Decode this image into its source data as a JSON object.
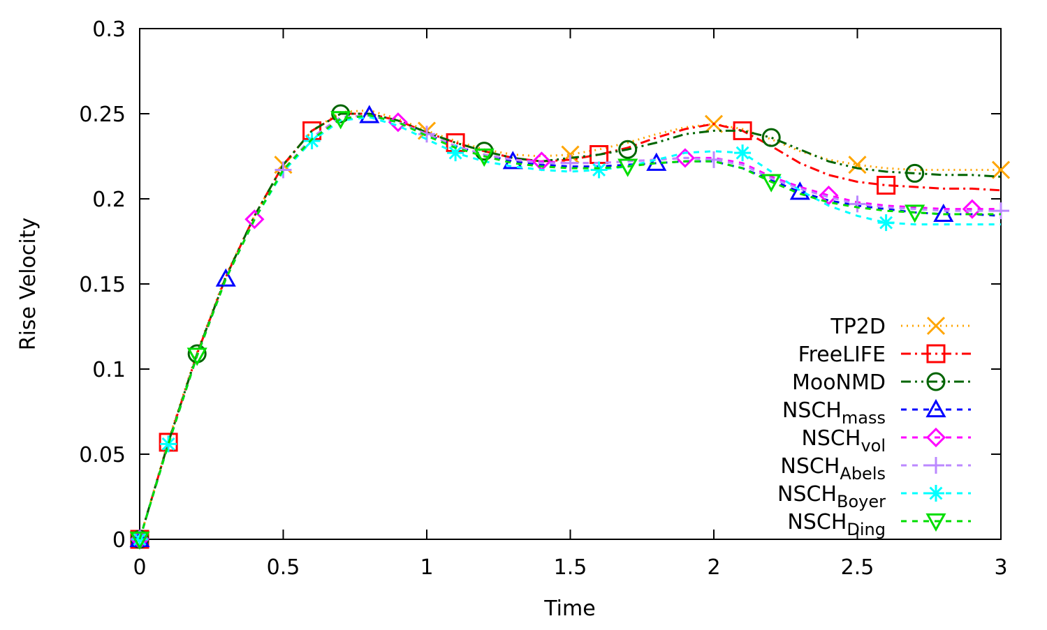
{
  "chart_data": {
    "type": "line",
    "xlabel": "Time",
    "ylabel": "Rise Velocity",
    "x": [
      0,
      0.1,
      0.2,
      0.3,
      0.4,
      0.5,
      0.6,
      0.7,
      0.8,
      0.9,
      1.0,
      1.1,
      1.2,
      1.3,
      1.4,
      1.5,
      1.6,
      1.7,
      1.8,
      1.9,
      2.0,
      2.1,
      2.2,
      2.3,
      2.4,
      2.5,
      2.6,
      2.7,
      2.8,
      2.9,
      3.0
    ],
    "xlim": [
      0,
      3
    ],
    "xticks": [
      0,
      0.5,
      1,
      1.5,
      2,
      2.5,
      3
    ],
    "ylim": [
      0,
      0.3
    ],
    "yticks": [
      0,
      0.05,
      0.1,
      0.15,
      0.2,
      0.25,
      0.3
    ],
    "series": [
      {
        "name": "TP2D",
        "color": "#ffa500",
        "marker": "x",
        "dash": "2 6",
        "values": [
          0,
          0.058,
          0.11,
          0.155,
          0.19,
          0.22,
          0.24,
          0.251,
          0.252,
          0.247,
          0.24,
          0.234,
          0.229,
          0.226,
          0.225,
          0.226,
          0.229,
          0.233,
          0.238,
          0.242,
          0.244,
          0.241,
          0.235,
          0.228,
          0.223,
          0.22,
          0.218,
          0.217,
          0.217,
          0.217,
          0.217
        ]
      },
      {
        "name": "FreeLIFE",
        "color": "#ff0000",
        "marker": "square",
        "dash": "14 6 3 6",
        "values": [
          0,
          0.057,
          0.109,
          0.154,
          0.19,
          0.22,
          0.24,
          0.25,
          0.25,
          0.246,
          0.239,
          0.233,
          0.228,
          0.224,
          0.222,
          0.223,
          0.226,
          0.23,
          0.236,
          0.241,
          0.244,
          0.24,
          0.231,
          0.221,
          0.214,
          0.21,
          0.208,
          0.207,
          0.206,
          0.206,
          0.205
        ]
      },
      {
        "name": "MooNMD",
        "color": "#006400",
        "marker": "circle",
        "dash": "14 6 3 6 3 6",
        "values": [
          0,
          0.057,
          0.109,
          0.154,
          0.19,
          0.22,
          0.24,
          0.25,
          0.25,
          0.246,
          0.239,
          0.233,
          0.228,
          0.224,
          0.222,
          0.224,
          0.226,
          0.229,
          0.233,
          0.238,
          0.24,
          0.24,
          0.236,
          0.229,
          0.222,
          0.218,
          0.216,
          0.215,
          0.214,
          0.214,
          0.213
        ]
      },
      {
        "name": "NSCH",
        "subscript": "mass",
        "color": "#0000ff",
        "marker": "triangle",
        "dash": "8 8",
        "values": [
          0,
          0.056,
          0.108,
          0.153,
          0.188,
          0.217,
          0.235,
          0.247,
          0.249,
          0.245,
          0.238,
          0.231,
          0.226,
          0.222,
          0.22,
          0.219,
          0.219,
          0.22,
          0.221,
          0.222,
          0.222,
          0.218,
          0.211,
          0.204,
          0.199,
          0.196,
          0.194,
          0.192,
          0.191,
          0.191,
          0.19
        ]
      },
      {
        "name": "NSCH",
        "subscript": "vol",
        "color": "#ff00ff",
        "marker": "diamond",
        "dash": "8 8",
        "values": [
          0,
          0.056,
          0.108,
          0.153,
          0.188,
          0.217,
          0.236,
          0.248,
          0.249,
          0.245,
          0.238,
          0.231,
          0.226,
          0.223,
          0.222,
          0.221,
          0.221,
          0.222,
          0.223,
          0.224,
          0.224,
          0.221,
          0.213,
          0.207,
          0.202,
          0.198,
          0.196,
          0.195,
          0.194,
          0.194,
          0.194
        ]
      },
      {
        "name": "NSCH",
        "subscript": "Abels",
        "color": "#bb88ff",
        "marker": "plus",
        "dash": "8 8",
        "values": [
          0,
          0.056,
          0.108,
          0.153,
          0.188,
          0.217,
          0.236,
          0.248,
          0.249,
          0.245,
          0.238,
          0.231,
          0.226,
          0.223,
          0.221,
          0.221,
          0.221,
          0.222,
          0.223,
          0.224,
          0.223,
          0.22,
          0.212,
          0.206,
          0.201,
          0.197,
          0.195,
          0.194,
          0.193,
          0.193,
          0.193
        ]
      },
      {
        "name": "NSCH",
        "subscript": "Boyer",
        "color": "#00ffff",
        "marker": "star",
        "dash": "8 8",
        "values": [
          0,
          0.056,
          0.108,
          0.153,
          0.188,
          0.216,
          0.234,
          0.246,
          0.248,
          0.243,
          0.235,
          0.227,
          0.222,
          0.219,
          0.217,
          0.216,
          0.217,
          0.219,
          0.223,
          0.227,
          0.228,
          0.227,
          0.216,
          0.205,
          0.196,
          0.19,
          0.186,
          0.185,
          0.185,
          0.185,
          0.185
        ]
      },
      {
        "name": "NSCH",
        "subscript": "Ding",
        "color": "#00dd00",
        "marker": "triangle-down",
        "dash": "8 8",
        "values": [
          0,
          0.056,
          0.108,
          0.153,
          0.188,
          0.217,
          0.235,
          0.247,
          0.249,
          0.245,
          0.237,
          0.23,
          0.225,
          0.221,
          0.219,
          0.218,
          0.218,
          0.219,
          0.221,
          0.222,
          0.222,
          0.218,
          0.21,
          0.203,
          0.198,
          0.195,
          0.193,
          0.192,
          0.191,
          0.191,
          0.191
        ]
      }
    ]
  }
}
